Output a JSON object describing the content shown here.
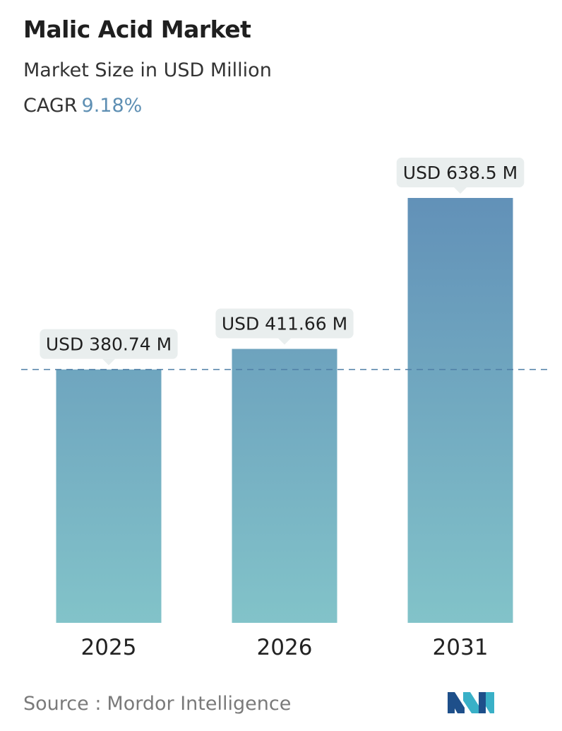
{
  "header": {
    "title": "Malic Acid Market",
    "subtitle": "Market Size in USD Million",
    "cagr_label": "CAGR",
    "cagr_value": "9.18%"
  },
  "footer": {
    "source_label": "Source :",
    "source_name": "Mordor Intelligence"
  },
  "logo": {
    "icon": "mordor-intelligence-logo"
  },
  "colors": {
    "bar_top": "#6291b8",
    "bar_bottom": "#82c3c9",
    "label_bg": "#e9eeee",
    "reference_line": "#4f7fa6",
    "cagr_accent": "#5e8fb3",
    "logo_dark": "#1e4f8a",
    "logo_light": "#39b0c7"
  },
  "chart_data": {
    "type": "bar",
    "categories": [
      "2025",
      "2026",
      "2031"
    ],
    "values": [
      380.74,
      411.66,
      638.5
    ],
    "data_labels": [
      "USD 380.74 M",
      "USD 411.66 M",
      "USD 638.5 M"
    ],
    "unit": "USD Million",
    "reference_line": {
      "value": 380.74,
      "style": "dashed"
    },
    "ylim": [
      0,
      638.5
    ],
    "grid": false,
    "legend": "none"
  }
}
